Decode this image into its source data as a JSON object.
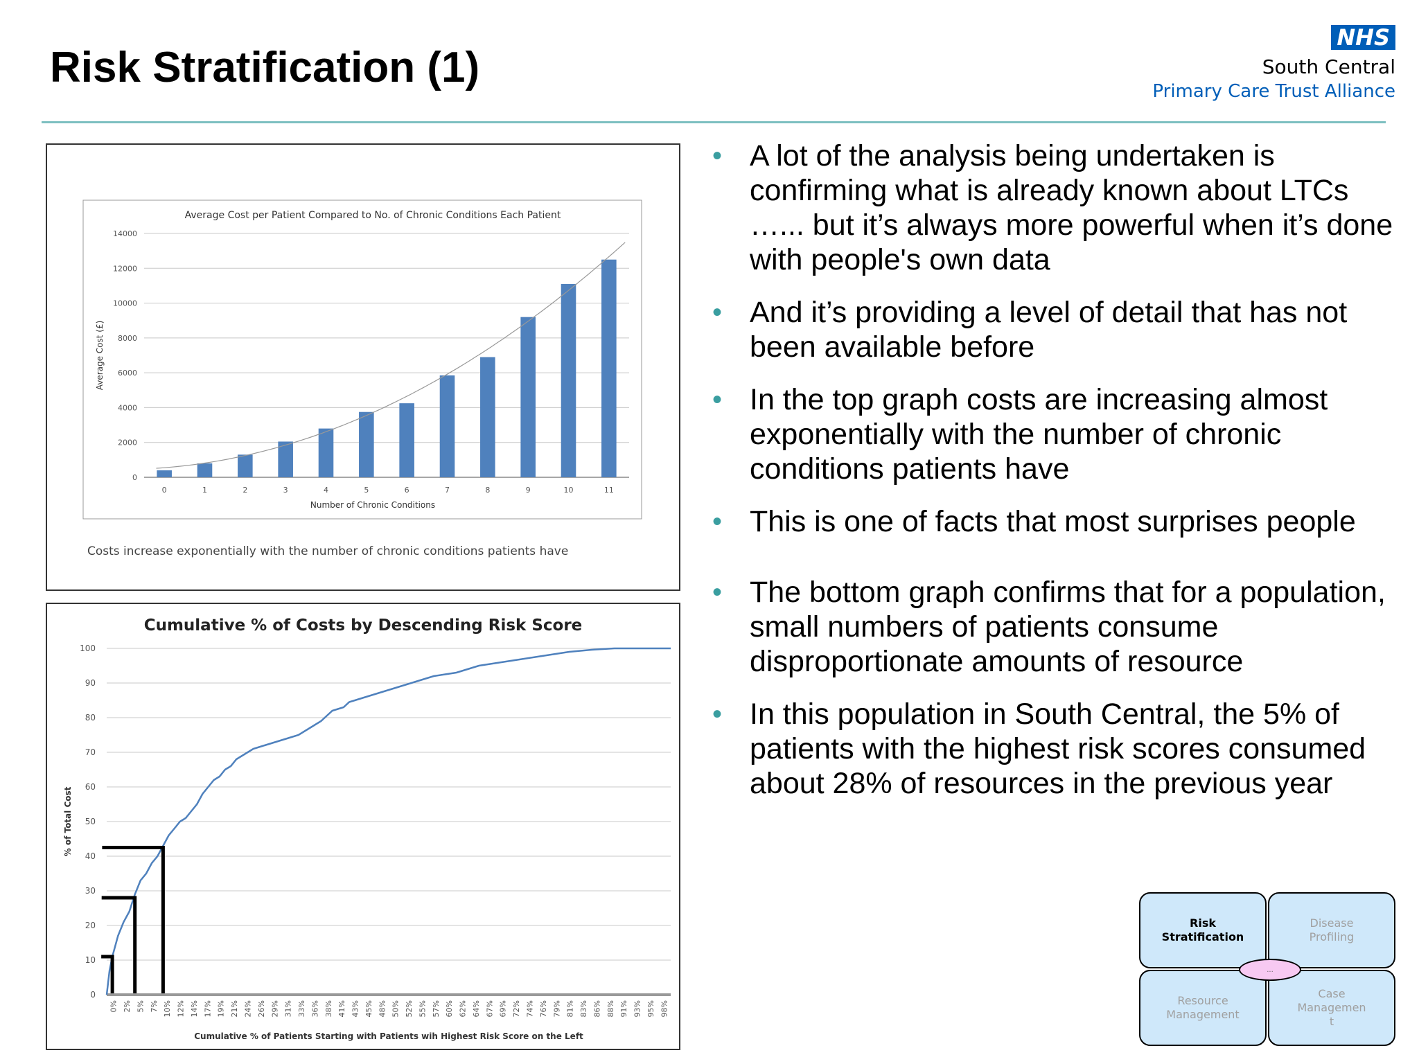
{
  "title": "Risk Stratification (1)",
  "logo": {
    "badge": "NHS",
    "line1": "South Central",
    "line2": "Primary Care Trust Alliance"
  },
  "bullets": [
    "A lot of the analysis being undertaken is confirming what is already known about LTCs …... but it’s always more powerful when it’s done with people's own data",
    "And it’s providing a level of detail that has not been available before",
    "In the top graph costs are increasing almost exponentially with the number of chronic conditions patients have",
    "This is one of facts that most surprises people",
    "The bottom graph confirms that for a population, small numbers of patients consume disproportionate amounts of resource",
    "In this population in South Central, the 5% of patients with the highest risk scores consumed about 28% of resources in the previous year"
  ],
  "petal": {
    "risk": "Risk\nStratification",
    "disease": "Disease\nProfiling",
    "resource": "Resource\nManagement",
    "case": "Case\nManagemen\nt",
    "center": "..."
  },
  "chart_data": [
    {
      "type": "bar",
      "title": "Average Cost per Patient Compared to No. of Chronic Conditions Each Patient",
      "xlabel": "Number of Chronic Conditions",
      "ylabel": "Average Cost (£)",
      "categories": [
        "0",
        "1",
        "2",
        "3",
        "4",
        "5",
        "6",
        "7",
        "8",
        "9",
        "10",
        "11"
      ],
      "values": [
        400,
        800,
        1300,
        2050,
        2800,
        3750,
        4250,
        5850,
        6900,
        9200,
        11100,
        12500
      ],
      "ylim": [
        0,
        14000
      ],
      "yticks": [
        "0",
        "2000",
        "4000",
        "6000",
        "8000",
        "10000",
        "12000",
        "14000"
      ],
      "trendline": true,
      "caption": "Costs increase exponentially with the number of chronic conditions patients have",
      "bar_color": "#4f81bd"
    },
    {
      "type": "line",
      "title": "Cumulative % of Costs by Descending Risk Score",
      "xlabel": "Cumulative % of Patients Starting with Patients wih Highest Risk Score on the Left",
      "ylabel": "% of Total Cost",
      "ylim": [
        0,
        100
      ],
      "xlim": [
        0,
        100
      ],
      "yticks": [
        "0",
        "10",
        "20",
        "30",
        "40",
        "50",
        "60",
        "70",
        "80",
        "90",
        "100"
      ],
      "xticks": [
        "0%",
        "2%",
        "5%",
        "7%",
        "10%",
        "12%",
        "14%",
        "17%",
        "19%",
        "21%",
        "24%",
        "26%",
        "29%",
        "31%",
        "33%",
        "36%",
        "38%",
        "41%",
        "43%",
        "45%",
        "48%",
        "50%",
        "52%",
        "55%",
        "57%",
        "60%",
        "62%",
        "64%",
        "67%",
        "69%",
        "72%",
        "74%",
        "76%",
        "79%",
        "81%",
        "83%",
        "86%",
        "88%",
        "91%",
        "93%",
        "95%",
        "98%"
      ],
      "series": [
        {
          "x": [
            0,
            0.5,
            1,
            2,
            3,
            4,
            5,
            6,
            7,
            8,
            9,
            10,
            11,
            12,
            13,
            14,
            15,
            16,
            17,
            18,
            19,
            20,
            21,
            22,
            23,
            24,
            25,
            26,
            27,
            28,
            29,
            30,
            32,
            34,
            36,
            38,
            40,
            41,
            42,
            43,
            44,
            46,
            48,
            50,
            52,
            54,
            56,
            58,
            60,
            62,
            64,
            66,
            68,
            70,
            72,
            74,
            76,
            78,
            80,
            82,
            84,
            86,
            88,
            90,
            92,
            94,
            96,
            98,
            100
          ],
          "y": [
            0,
            7,
            11,
            17,
            21,
            24,
            29,
            33,
            35,
            38,
            40,
            43,
            46,
            48,
            50,
            51,
            53,
            55,
            58,
            60,
            62,
            63,
            65,
            66,
            68,
            69,
            70,
            71,
            71.5,
            72,
            72.5,
            73,
            74,
            75,
            77,
            79,
            82,
            82.5,
            83,
            84.5,
            85,
            86,
            87,
            88,
            89,
            90,
            91,
            92,
            92.5,
            93,
            94,
            95,
            95.5,
            96,
            96.5,
            97,
            97.5,
            98,
            98.5,
            99,
            99.3,
            99.6,
            99.8,
            100,
            100,
            100,
            100,
            100,
            100
          ],
          "color": "#4f81bd"
        }
      ],
      "markers": [
        {
          "x": 1,
          "y": 11
        },
        {
          "x": 5,
          "y": 28
        },
        {
          "x": 10,
          "y": 42.5
        }
      ]
    }
  ]
}
